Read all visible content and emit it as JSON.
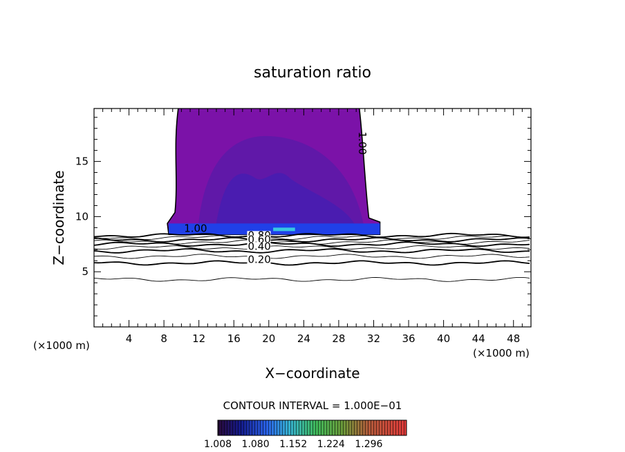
{
  "chart_data": {
    "type": "contour",
    "title": "saturation ratio",
    "xlabel": "X−coordinate",
    "ylabel": "Z−coordinate",
    "x_unit_left": "(×1000 m)",
    "x_unit_right": "(×1000 m)",
    "xlim": [
      0,
      50
    ],
    "ylim": [
      0,
      19.8
    ],
    "x_ticks": [
      4,
      8,
      12,
      16,
      20,
      24,
      28,
      32,
      36,
      40,
      44,
      48
    ],
    "y_ticks": [
      5,
      10,
      15
    ],
    "contour_interval_text": "CONTOUR INTERVAL = 1.000E−01",
    "contour_labels": [
      {
        "text": "1.00",
        "x": 10.3,
        "z": 8.6
      },
      {
        "text": "1.00",
        "x": 30.3,
        "z": 17.7
      },
      {
        "text": "0.80",
        "x": 17.6,
        "z": 8.0
      },
      {
        "text": "0.60",
        "x": 17.6,
        "z": 7.6
      },
      {
        "text": "0.40",
        "x": 17.6,
        "z": 7.0
      },
      {
        "text": "0.20",
        "x": 17.6,
        "z": 5.8
      }
    ],
    "contour_lines": [
      {
        "level": 0.1,
        "z": 4.3,
        "bold": false
      },
      {
        "level": 0.2,
        "z": 5.8,
        "bold": true
      },
      {
        "level": 0.3,
        "z": 6.4,
        "bold": false
      },
      {
        "level": 0.4,
        "z": 6.9,
        "bold": true
      },
      {
        "level": 0.5,
        "z": 7.2,
        "bold": false
      },
      {
        "level": 0.6,
        "z": 7.5,
        "bold": true
      },
      {
        "level": 0.7,
        "z": 7.7,
        "bold": false
      },
      {
        "level": 0.8,
        "z": 7.9,
        "bold": true
      },
      {
        "level": 0.9,
        "z": 8.1,
        "bold": false
      },
      {
        "level": 1.0,
        "z": 8.3,
        "bold": true
      }
    ],
    "cloud": {
      "x_left": 9.5,
      "x_right": 30.5,
      "z_base": 8.5,
      "z_top": 19.8
    },
    "colorbar": {
      "min": 1.008,
      "max": 1.368,
      "tick_labels": [
        "1.008",
        "1.080",
        "1.152",
        "1.224",
        "1.296"
      ]
    }
  }
}
